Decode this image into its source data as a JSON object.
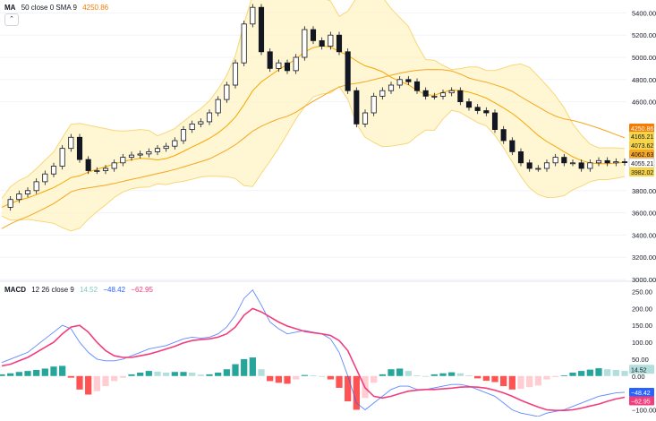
{
  "colors": {
    "bg": "#ffffff",
    "up": "#089981",
    "down": "#f23645",
    "candle": "#131722",
    "ma": "#f7a600",
    "sma": "#f5a623",
    "band": "#fff3c4",
    "band_line": "#f7d77a",
    "macd_line": "#2962ff",
    "signal_line": "#f23d7d",
    "hist_up": "#26a69a",
    "hist_up_light": "#b2dfdb",
    "hist_down": "#ff5252",
    "hist_down_light": "#ffcdd2",
    "grid": "#f0f3fa",
    "axis_text": "#131722"
  },
  "main_legend": {
    "name": "MA",
    "params": "50 close 0 SMA 9",
    "value": "4250.86"
  },
  "collapse_icon": "chevron-up-icon",
  "macd_legend": {
    "name": "MACD",
    "params": "12 26 close 9",
    "hist": "14.52",
    "macd": "−48.42",
    "signal": "−62.95"
  },
  "price_axis": {
    "ticks": [
      "5400.00",
      "5200.00",
      "5000.00",
      "4800.00",
      "4600.00",
      "3800.00",
      "3600.00",
      "3400.00",
      "3200.00",
      "3000.00"
    ],
    "labels": [
      {
        "text": "4250.86",
        "color": "#f57c00",
        "text_color": "#ffffff"
      },
      {
        "text": "4165.21",
        "color": "#f7d54a",
        "text_color": "#131722"
      },
      {
        "text": "4073.62",
        "color": "#f7d54a",
        "text_color": "#131722"
      },
      {
        "text": "4062.63",
        "color": "#f9a825",
        "text_color": "#131722"
      },
      {
        "text": "4055.21",
        "color": "#ffffff",
        "text_color": "#131722"
      },
      {
        "text": "3982.02",
        "color": "#f7d54a",
        "text_color": "#131722"
      }
    ]
  },
  "macd_axis": {
    "ticks": [
      "250.00",
      "200.00",
      "150.00",
      "100.00",
      "50.00",
      "0.00",
      "−100.00"
    ],
    "labels": [
      {
        "text": "14.52",
        "color": "#b2dfdb",
        "text_color": "#131722"
      },
      {
        "text": "−48.42",
        "color": "#2962ff",
        "text_color": "#ffffff"
      },
      {
        "text": "−62.95",
        "color": "#f23d7d",
        "text_color": "#ffffff"
      }
    ]
  },
  "chart_data": {
    "type": "line",
    "price_ylim": [
      3000,
      5500
    ],
    "macd_ylim": [
      -120,
      270
    ],
    "price_series": [
      {
        "name": "",
        "values": [
          3650,
          3720,
          3770,
          3800,
          3880,
          3950,
          4020,
          4180,
          4280,
          4080,
          3980,
          3980,
          4000,
          4050,
          4100,
          4120,
          4130,
          4150,
          4180,
          4200,
          4250,
          4350,
          4400,
          4420,
          4500,
          4620,
          4750,
          4950,
          5300,
          5450,
          5050,
          4900,
          4950,
          4880,
          5000,
          5250,
          5150,
          5100,
          5200,
          5050,
          4700,
          4400,
          4500,
          4650,
          4700,
          4750,
          4800,
          4780,
          4700,
          4650,
          4650,
          4680,
          4700,
          4600,
          4550,
          4520,
          4500,
          4350,
          4250,
          4150,
          4050,
          4000,
          4000,
          4050,
          4100,
          4050,
          4050,
          4000,
          4050,
          4070,
          4050,
          4060,
          4055
        ]
      }
    ],
    "macd_series": [
      {
        "name": "",
        "values": [
          40,
          50,
          60,
          70,
          90,
          110,
          130,
          150,
          140,
          100,
          70,
          50,
          45,
          45,
          50,
          60,
          70,
          80,
          85,
          90,
          100,
          110,
          115,
          112,
          115,
          125,
          145,
          180,
          230,
          255,
          210,
          160,
          140,
          125,
          130,
          135,
          130,
          125,
          110,
          70,
          0,
          -80,
          -100,
          -80,
          -60,
          -40,
          -30,
          -30,
          -40,
          -40,
          -35,
          -30,
          -25,
          -25,
          -30,
          -40,
          -50,
          -60,
          -80,
          -100,
          -110,
          -115,
          -120,
          -110,
          -105,
          -100,
          -90,
          -80,
          -70,
          -60,
          -55,
          -50,
          -48
        ]
      },
      {
        "name": "",
        "values": [
          30,
          35,
          45,
          55,
          70,
          85,
          100,
          125,
          145,
          150,
          130,
          100,
          75,
          60,
          55,
          55,
          60,
          65,
          72,
          80,
          88,
          98,
          105,
          108,
          110,
          115,
          125,
          145,
          180,
          200,
          190,
          175,
          160,
          148,
          140,
          132,
          128,
          125,
          120,
          105,
          75,
          20,
          -35,
          -60,
          -65,
          -60,
          -52,
          -45,
          -42,
          -40,
          -40,
          -38,
          -36,
          -33,
          -32,
          -33,
          -36,
          -42,
          -50,
          -60,
          -72,
          -82,
          -92,
          -100,
          -102,
          -102,
          -100,
          -95,
          -89,
          -83,
          -75,
          -68,
          -63
        ]
      }
    ],
    "macd_histogram": [
      5,
      8,
      12,
      15,
      18,
      22,
      28,
      30,
      -5,
      -40,
      -55,
      -45,
      -30,
      -15,
      -5,
      5,
      10,
      15,
      13,
      10,
      12,
      12,
      10,
      4,
      5,
      10,
      20,
      35,
      50,
      55,
      20,
      -15,
      -20,
      -23,
      -10,
      3,
      2,
      0,
      -10,
      -35,
      -75,
      -100,
      -65,
      -20,
      5,
      20,
      22,
      15,
      2,
      0,
      5,
      8,
      11,
      8,
      2,
      -7,
      -14,
      -18,
      -30,
      -40,
      -38,
      -33,
      -28,
      -10,
      -3,
      2,
      10,
      15,
      19,
      23,
      20,
      18,
      15
    ]
  }
}
